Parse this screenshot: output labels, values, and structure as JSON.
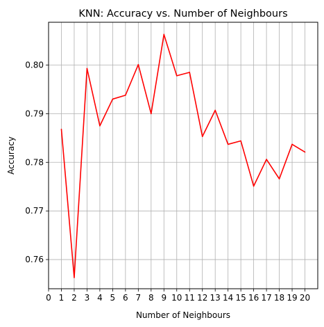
{
  "chart_data": {
    "type": "line",
    "title": "KNN: Accuracy vs. Number of Neighbours",
    "xlabel": "Number of Neighbours",
    "ylabel": "Accuracy",
    "xlim": [
      0,
      21
    ],
    "ylim": [
      0.754,
      0.8088
    ],
    "xticks": [
      0,
      1,
      2,
      3,
      4,
      5,
      6,
      7,
      8,
      9,
      10,
      11,
      12,
      13,
      14,
      15,
      16,
      17,
      18,
      19,
      20
    ],
    "yticks": [
      0.76,
      0.77,
      0.78,
      0.79,
      0.8
    ],
    "ytick_labels": [
      "0.76",
      "0.77",
      "0.78",
      "0.79",
      "0.80"
    ],
    "grid": true,
    "x": [
      1,
      2,
      3,
      4,
      5,
      6,
      7,
      8,
      9,
      10,
      11,
      12,
      13,
      14,
      15,
      16,
      17,
      18,
      19,
      20
    ],
    "series": [
      {
        "color": "#ff0000",
        "values": [
          0.7868,
          0.7563,
          0.7993,
          0.7875,
          0.793,
          0.7938,
          0.8001,
          0.79,
          0.8063,
          0.7978,
          0.7985,
          0.7853,
          0.7907,
          0.7837,
          0.7844,
          0.7751,
          0.7806,
          0.7766,
          0.7837,
          0.7821
        ]
      }
    ]
  }
}
